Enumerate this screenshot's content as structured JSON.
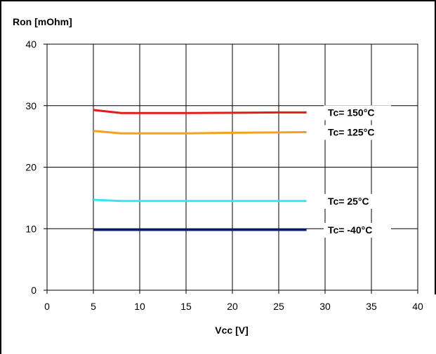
{
  "chart_data": {
    "type": "line",
    "title": "",
    "xlabel": "Vcc [V]",
    "ylabel": "Ron [mOhm]",
    "xlim": [
      0,
      40
    ],
    "ylim": [
      0,
      40
    ],
    "xticks": [
      0,
      5,
      10,
      15,
      20,
      25,
      30,
      35,
      40
    ],
    "yticks": [
      0,
      10,
      20,
      30,
      40
    ],
    "grid": true,
    "legend": "inline-labels-right",
    "series": [
      {
        "name": "Tc= 150°C",
        "color": "#e41a1c",
        "x": [
          5,
          8,
          10,
          15,
          20,
          25,
          28
        ],
        "y": [
          29.3,
          28.8,
          28.8,
          28.8,
          28.85,
          28.9,
          28.9
        ]
      },
      {
        "name": "Tc= 125°C",
        "color": "#f4a020",
        "x": [
          5,
          8,
          10,
          15,
          20,
          25,
          28
        ],
        "y": [
          25.9,
          25.5,
          25.5,
          25.5,
          25.6,
          25.65,
          25.7
        ]
      },
      {
        "name": "Tc= 25°C",
        "color": "#33e6f0",
        "x": [
          5,
          8,
          10,
          15,
          20,
          25,
          28
        ],
        "y": [
          14.7,
          14.5,
          14.5,
          14.5,
          14.5,
          14.5,
          14.5
        ]
      },
      {
        "name": "Tc= -40°C",
        "color": "#0a1e7a",
        "x": [
          5,
          8,
          10,
          15,
          20,
          25,
          28
        ],
        "y": [
          9.8,
          9.8,
          9.8,
          9.8,
          9.8,
          9.8,
          9.8
        ]
      }
    ]
  }
}
